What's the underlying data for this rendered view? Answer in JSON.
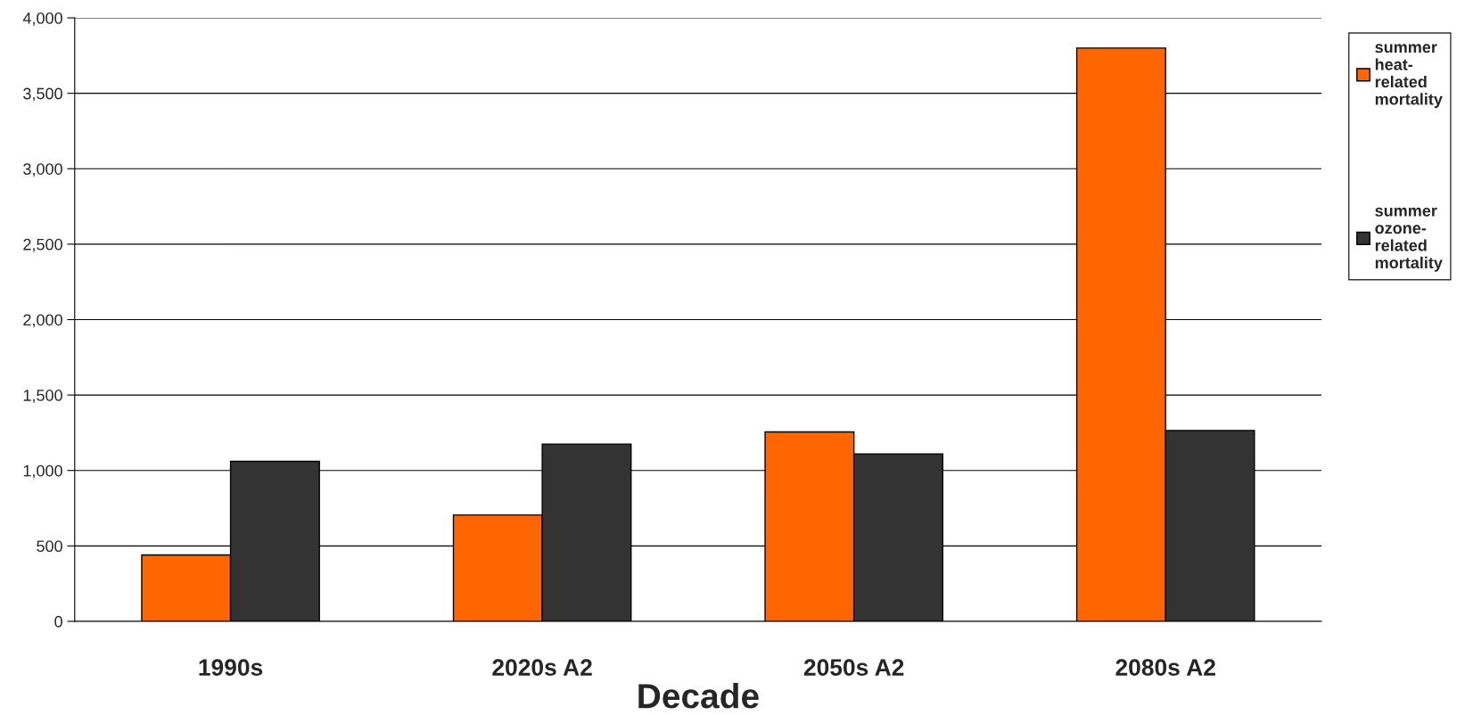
{
  "chart_data": {
    "type": "bar",
    "xlabel": "Decade",
    "categories": [
      "1990s",
      "2020s A2",
      "2050s A2",
      "2080s A2"
    ],
    "series": [
      {
        "name": "summer\nheat-\nrelated\nmortality",
        "color": "#ff6600",
        "values": [
          440,
          705,
          1255,
          3800
        ]
      },
      {
        "name": "summer\nozone-\nrelated\nmortality",
        "color": "#333333",
        "values": [
          1060,
          1175,
          1110,
          1265
        ]
      }
    ],
    "ylim": [
      0,
      4000
    ],
    "yticks": [
      {
        "value": 0,
        "label": "0"
      },
      {
        "value": 500,
        "label": "500"
      },
      {
        "value": 1000,
        "label": "1,000"
      },
      {
        "value": 1500,
        "label": "1,500"
      },
      {
        "value": 2000,
        "label": "2,000"
      },
      {
        "value": 2500,
        "label": "2,500"
      },
      {
        "value": 3000,
        "label": "3,000"
      },
      {
        "value": 3500,
        "label": "3,500"
      },
      {
        "value": 4000,
        "label": "4,000"
      }
    ],
    "grid": "y",
    "legend": "right"
  }
}
